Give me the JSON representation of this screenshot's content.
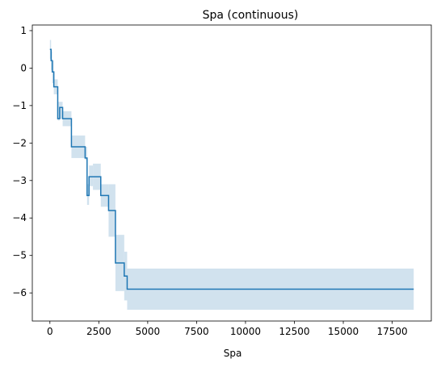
{
  "chart_data": {
    "type": "line",
    "title": "Spa (continuous)",
    "xlabel": "Spa",
    "ylabel": "",
    "xlim": [
      -900,
      19500
    ],
    "ylim": [
      -6.75,
      1.15
    ],
    "x_ticks": [
      0,
      2500,
      5000,
      7500,
      10000,
      12500,
      15000,
      17500
    ],
    "x_tick_labels": [
      "0",
      "2500",
      "5000",
      "7500",
      "10000",
      "12500",
      "15000",
      "17500"
    ],
    "y_ticks": [
      -6,
      -5,
      -4,
      -3,
      -2,
      -1,
      0,
      1
    ],
    "y_tick_labels": [
      "−6",
      "−5",
      "−4",
      "−3",
      "−2",
      "−1",
      "0",
      "1"
    ],
    "grid": false,
    "colors": {
      "line": "#1f77b4",
      "band": "#c5dbea",
      "axis": "#000000"
    },
    "series": [
      {
        "drawstyle": "steps-post",
        "x": [
          0,
          60,
          120,
          200,
          280,
          400,
          500,
          650,
          1100,
          1800,
          1900,
          2000,
          2200,
          2600,
          3000,
          3350,
          3800,
          3950,
          18600
        ],
        "values": [
          0.5,
          0.2,
          -0.1,
          -0.5,
          -0.5,
          -1.35,
          -1.05,
          -1.35,
          -2.1,
          -2.4,
          -3.4,
          -2.9,
          -2.9,
          -3.4,
          -3.8,
          -5.2,
          -5.55,
          -5.9,
          -5.9
        ],
        "lower": [
          0.25,
          -0.05,
          -0.4,
          -0.7,
          -0.7,
          -1.4,
          -1.35,
          -1.55,
          -2.4,
          -2.45,
          -3.65,
          -3.15,
          -3.25,
          -3.7,
          -4.5,
          -5.95,
          -6.2,
          -6.45,
          -6.45
        ],
        "upper": [
          0.75,
          0.45,
          0.2,
          -0.3,
          -0.3,
          -0.9,
          -0.9,
          -1.15,
          -1.8,
          -2.1,
          -3.1,
          -2.6,
          -2.55,
          -3.1,
          -3.1,
          -4.45,
          -4.9,
          -5.35,
          -5.35
        ]
      }
    ]
  }
}
